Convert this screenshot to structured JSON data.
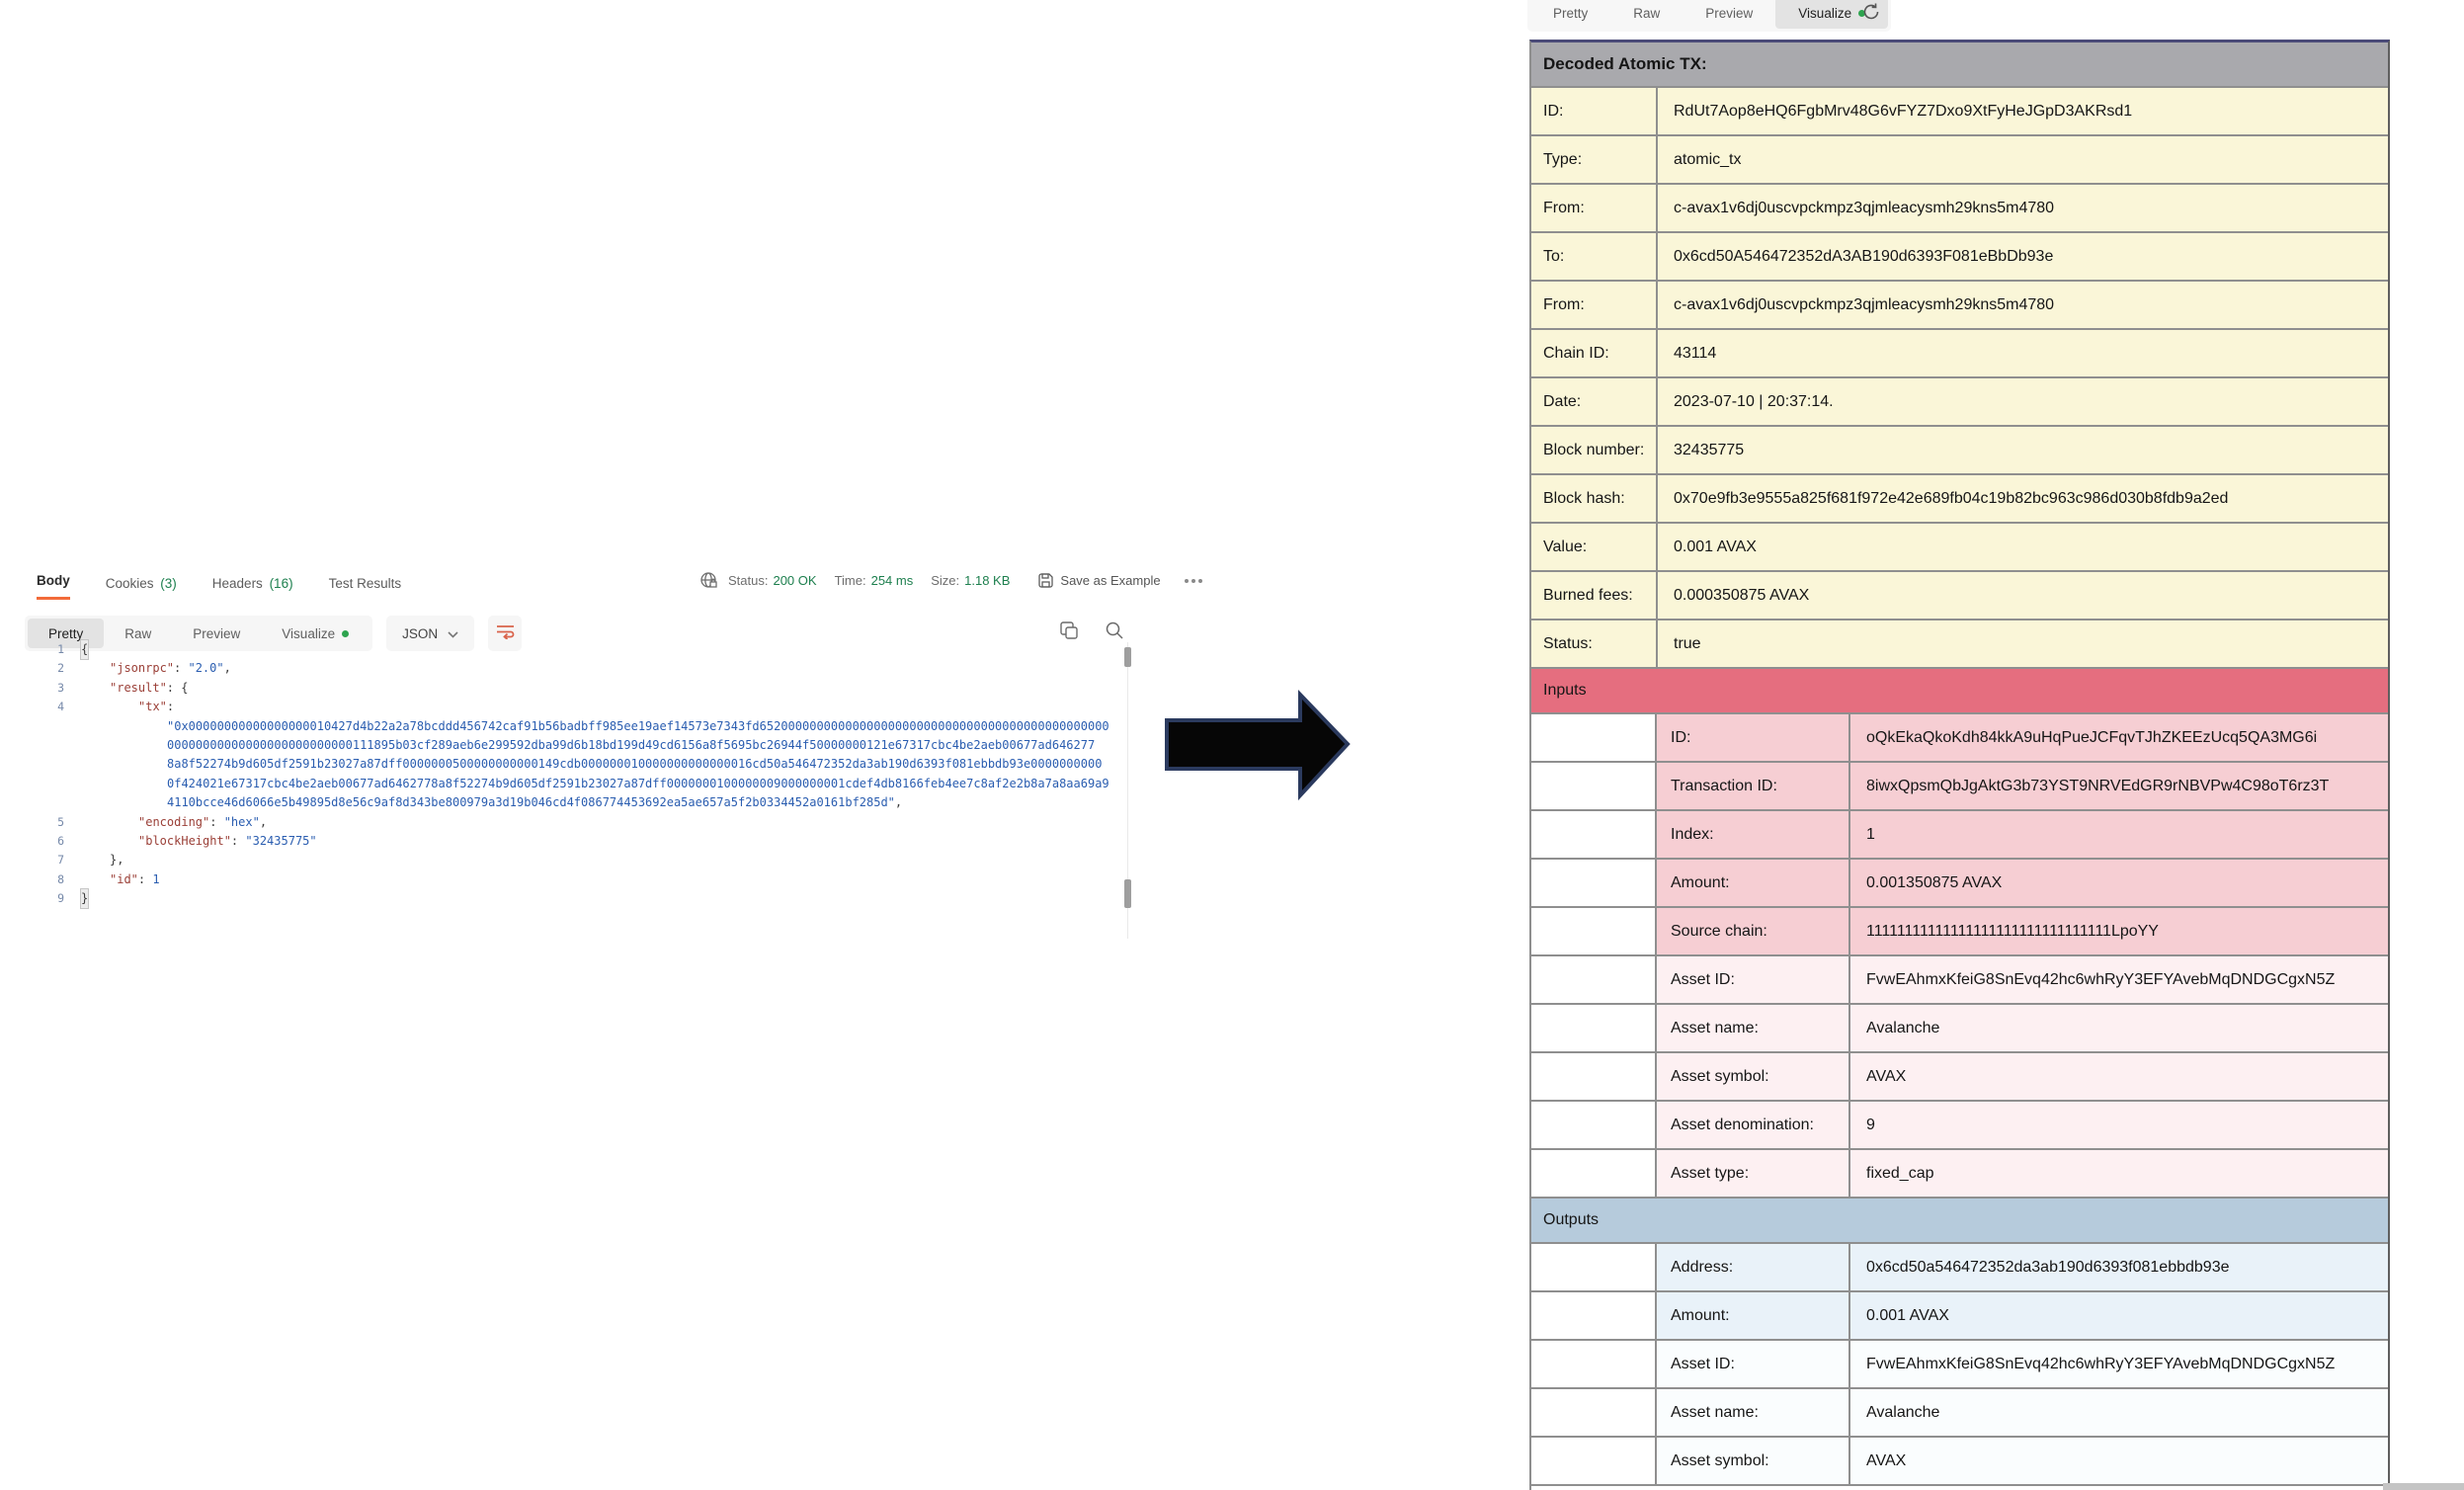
{
  "left_panel": {
    "response_tabs": [
      {
        "label": "Body",
        "count": "",
        "active": true
      },
      {
        "label": "Cookies",
        "count": "(3)",
        "active": false
      },
      {
        "label": "Headers",
        "count": "(16)",
        "active": false
      },
      {
        "label": "Test Results",
        "count": "",
        "active": false
      }
    ],
    "status_bar": {
      "status_label": "Status:",
      "status_value": "200 OK",
      "time_label": "Time:",
      "time_value": "254 ms",
      "size_label": "Size:",
      "size_value": "1.18 KB",
      "save_as_example": "Save as Example"
    },
    "view_tabs": {
      "tabs": [
        "Pretty",
        "Raw",
        "Preview",
        "Visualize"
      ],
      "active": "Pretty",
      "dot_tab": "Visualize"
    },
    "language_select": "JSON",
    "code": {
      "lines": [
        {
          "n": "1",
          "indent": 0,
          "boxed": true,
          "tokens": [
            [
              "p",
              "{"
            ]
          ]
        },
        {
          "n": "2",
          "indent": 1,
          "tokens": [
            [
              "k",
              "\"jsonrpc\""
            ],
            [
              "p",
              ": "
            ],
            [
              "s",
              "\"2.0\""
            ],
            [
              "p",
              ","
            ]
          ]
        },
        {
          "n": "3",
          "indent": 1,
          "tokens": [
            [
              "k",
              "\"result\""
            ],
            [
              "p",
              ": {"
            ]
          ]
        },
        {
          "n": "4",
          "indent": 2,
          "tokens": [
            [
              "k",
              "\"tx\""
            ],
            [
              "p",
              ":"
            ]
          ]
        },
        {
          "n": "",
          "indent": 3,
          "tokens": [
            [
              "s",
              "\"0x00000000000000000010427d4b22a2a78bcddd456742caf91b56badbff985ee19aef14573e7343fd6520000000000000000000000000000000000000000000000"
            ]
          ]
        },
        {
          "n": "",
          "indent": 3,
          "tokens": [
            [
              "s",
              "00000000000000000000000000111895b03cf289aeb6e299592dba99d6b18bd199d49cd6156a8f5695bc26944f50000000121e67317cbc4be2aeb00677ad646277"
            ]
          ]
        },
        {
          "n": "",
          "indent": 3,
          "tokens": [
            [
              "s",
              "8a8f52274b9d605df2591b23027a87dff0000000500000000000149cdb000000010000000000000016cd50a546472352da3ab190d6393f081ebbdb93e0000000000"
            ]
          ]
        },
        {
          "n": "",
          "indent": 3,
          "tokens": [
            [
              "s",
              "0f424021e67317cbc4be2aeb00677ad6462778a8f52274b9d605df2591b23027a87dff0000000100000009000000001cdef4db8166feb4ee7c8af2e2b8a7a8aa69a9"
            ]
          ]
        },
        {
          "n": "",
          "indent": 3,
          "tokens": [
            [
              "s",
              "4110bcce46d6066e5b49895d8e56c9af8d343be800979a3d19b046cd4f086774453692ea5ae657a5f2b0334452a0161bf285d\""
            ],
            [
              "p",
              ","
            ]
          ]
        },
        {
          "n": "5",
          "indent": 2,
          "tokens": [
            [
              "k",
              "\"encoding\""
            ],
            [
              "p",
              ": "
            ],
            [
              "s",
              "\"hex\""
            ],
            [
              "p",
              ","
            ]
          ]
        },
        {
          "n": "6",
          "indent": 2,
          "tokens": [
            [
              "k",
              "\"blockHeight\""
            ],
            [
              "p",
              ": "
            ],
            [
              "s",
              "\"32435775\""
            ]
          ]
        },
        {
          "n": "7",
          "indent": 1,
          "tokens": [
            [
              "p",
              "},"
            ]
          ]
        },
        {
          "n": "8",
          "indent": 1,
          "tokens": [
            [
              "k",
              "\"id\""
            ],
            [
              "p",
              ": "
            ],
            [
              "n",
              "1"
            ]
          ]
        },
        {
          "n": "9",
          "indent": 0,
          "boxed": true,
          "tokens": [
            [
              "p",
              "}"
            ]
          ]
        }
      ]
    }
  },
  "arrow": {
    "direction": "right"
  },
  "right_panel": {
    "view_tabs": {
      "tabs": [
        "Pretty",
        "Raw",
        "Preview",
        "Visualize"
      ],
      "active": "Visualize",
      "dot_tab": "Visualize"
    },
    "decoded_table": {
      "title": "Decoded Atomic TX:",
      "summary_rows": [
        {
          "label": "ID:",
          "value": "RdUt7Aop8eHQ6FgbMrv48G6vFYZ7Dxo9XtFyHeJGpD3AKRsd1"
        },
        {
          "label": "Type:",
          "value": "atomic_tx"
        },
        {
          "label": "From:",
          "value": "c-avax1v6dj0uscvpckmpz3qjmleacysmh29kns5m4780"
        },
        {
          "label": "To:",
          "value": "0x6cd50A546472352dA3AB190d6393F081eBbDb93e"
        },
        {
          "label": "From:",
          "value": "c-avax1v6dj0uscvpckmpz3qjmleacysmh29kns5m4780"
        },
        {
          "label": "Chain ID:",
          "value": "43114"
        },
        {
          "label": "Date:",
          "value": "2023-07-10 | 20:37:14."
        },
        {
          "label": "Block number:",
          "value": "32435775"
        },
        {
          "label": "Block hash:",
          "value": "0x70e9fb3e9555a825f681f972e42e689fb04c19b82bc963c986d030b8fdb9a2ed"
        },
        {
          "label": "Value:",
          "value": "0.001 AVAX"
        },
        {
          "label": "Burned fees:",
          "value": "0.000350875 AVAX"
        },
        {
          "label": "Status:",
          "value": "true"
        }
      ],
      "inputs_header": "Inputs",
      "inputs_rows": [
        {
          "label": "ID:",
          "value": "oQkEkaQkoKdh84kkA9uHqPueJCFqvTJhZKEEzUcq5QA3MG6i",
          "tone": "strong"
        },
        {
          "label": "Transaction ID:",
          "value": "8iwxQpsmQbJgAktG3b73YST9NRVEdGR9rNBVPw4C98oT6rz3T",
          "tone": "strong"
        },
        {
          "label": "Index:",
          "value": "1",
          "tone": "strong"
        },
        {
          "label": "Amount:",
          "value": "0.001350875 AVAX",
          "tone": "strong"
        },
        {
          "label": "Source chain:",
          "value": "11111111111111111111111111111111LpoYY",
          "tone": "strong"
        },
        {
          "label": "Asset ID:",
          "value": "FvwEAhmxKfeiG8SnEvq42hc6whRyY3EFYAvebMqDNDGCgxN5Z",
          "tone": "soft"
        },
        {
          "label": "Asset name:",
          "value": "Avalanche",
          "tone": "soft"
        },
        {
          "label": "Asset symbol:",
          "value": "AVAX",
          "tone": "soft"
        },
        {
          "label": "Asset denomination:",
          "value": "9",
          "tone": "soft"
        },
        {
          "label": "Asset type:",
          "value": "fixed_cap",
          "tone": "soft"
        }
      ],
      "outputs_header": "Outputs",
      "outputs_rows": [
        {
          "label": "Address:",
          "value": "0x6cd50a546472352da3ab190d6393f081ebbdb93e",
          "tone": "strong"
        },
        {
          "label": "Amount:",
          "value": "0.001 AVAX",
          "tone": "strong"
        },
        {
          "label": "Asset ID:",
          "value": "FvwEAhmxKfeiG8SnEvq42hc6whRyY3EFYAvebMqDNDGCgxN5Z",
          "tone": "soft"
        },
        {
          "label": "Asset name:",
          "value": "Avalanche",
          "tone": "soft"
        },
        {
          "label": "Asset symbol:",
          "value": "AVAX",
          "tone": "soft"
        }
      ]
    }
  },
  "colors": {
    "accent_orange": "#f26b3a",
    "status_green": "#1d7f4e",
    "visualize_dot_green": "#2ea44f",
    "wrap_icon_orange": "#d9634b",
    "table_title_bg": "#a9a9ad",
    "summary_row_bg": "#faf6d8",
    "inputs_header_bg": "#e56e7f",
    "input_row_strong_bg": "#f6ced3",
    "input_row_soft_bg": "#fdf0f2",
    "outputs_header_bg": "#b6cbdc",
    "output_row_strong_bg": "#e9f2f9",
    "output_row_soft_bg": "#fafdfe",
    "table_top_border": "#4b4b78",
    "code_key_color": "#9b4038",
    "code_string_color": "#2a5db0"
  }
}
